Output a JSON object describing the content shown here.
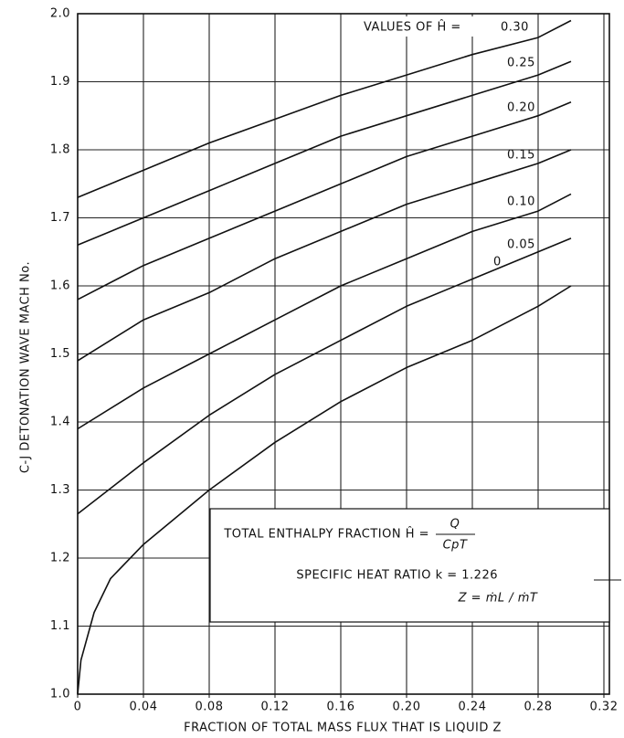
{
  "chart_data": {
    "type": "line",
    "xlabel": "FRACTION OF TOTAL MASS FLUX THAT IS LIQUID Z",
    "ylabel": "C-J DETONATION WAVE MACH No.",
    "legend_title": "VALUES OF Ĥ =",
    "annotations": [
      "TOTAL ENTHALPY FRACTION Ĥ =",
      "Q",
      "CpT",
      "SPECIFIC HEAT RATIO k = 1.226",
      "Z = ṁL / ṁT"
    ],
    "color": "#111111",
    "grid": true,
    "xlim": [
      0,
      0.32
    ],
    "ylim": [
      1.0,
      2.0
    ],
    "xticks": [
      0,
      0.04,
      0.08,
      0.12,
      0.16,
      {
        "value": 0.2,
        "label": "0.20"
      },
      0.24,
      0.28,
      0.32
    ],
    "yticks": [
      {
        "value": 1.0,
        "label": "1.0"
      },
      1.1,
      1.2,
      1.3,
      1.4,
      1.5,
      1.6,
      1.7,
      1.8,
      1.9,
      {
        "value": 2.0,
        "label": "2.0"
      }
    ],
    "series": [
      {
        "name": "0.30",
        "x": [
          0,
          0.04,
          0.08,
          0.12,
          0.16,
          0.2,
          0.24,
          0.28,
          0.3
        ],
        "values": [
          1.73,
          1.77,
          1.81,
          1.845,
          1.88,
          1.91,
          1.94,
          1.965,
          1.99
        ]
      },
      {
        "name": "0.25",
        "x": [
          0,
          0.04,
          0.08,
          0.12,
          0.16,
          0.2,
          0.24,
          0.28,
          0.3
        ],
        "values": [
          1.66,
          1.7,
          1.74,
          1.78,
          1.82,
          1.85,
          1.88,
          1.91,
          1.93
        ]
      },
      {
        "name": "0.20",
        "x": [
          0,
          0.04,
          0.08,
          0.12,
          0.16,
          0.2,
          0.24,
          0.28,
          0.3
        ],
        "values": [
          1.58,
          1.63,
          1.67,
          1.71,
          1.75,
          1.79,
          1.82,
          1.85,
          1.87
        ]
      },
      {
        "name": "0.15",
        "x": [
          0,
          0.04,
          0.08,
          0.12,
          0.16,
          0.2,
          0.24,
          0.28,
          0.3
        ],
        "values": [
          1.49,
          1.55,
          1.59,
          1.64,
          1.68,
          1.72,
          1.75,
          1.78,
          1.8
        ]
      },
      {
        "name": "0.10",
        "x": [
          0,
          0.04,
          0.08,
          0.12,
          0.16,
          0.2,
          0.24,
          0.28,
          0.3
        ],
        "values": [
          1.39,
          1.45,
          1.5,
          1.55,
          1.6,
          1.64,
          1.68,
          1.71,
          1.735
        ]
      },
      {
        "name": "0.05",
        "x": [
          0,
          0.04,
          0.08,
          0.12,
          0.16,
          0.2,
          0.24,
          0.28,
          0.3
        ],
        "values": [
          1.265,
          1.34,
          1.41,
          1.47,
          1.52,
          1.57,
          1.61,
          1.65,
          1.67
        ]
      },
      {
        "name": "0",
        "x": [
          0,
          0.002,
          0.01,
          0.02,
          0.04,
          0.08,
          0.12,
          0.16,
          0.2,
          0.24,
          0.28,
          0.3
        ],
        "values": [
          1.0,
          1.05,
          1.12,
          1.17,
          1.22,
          1.3,
          1.37,
          1.43,
          1.48,
          1.52,
          1.57,
          1.6
        ]
      }
    ]
  }
}
